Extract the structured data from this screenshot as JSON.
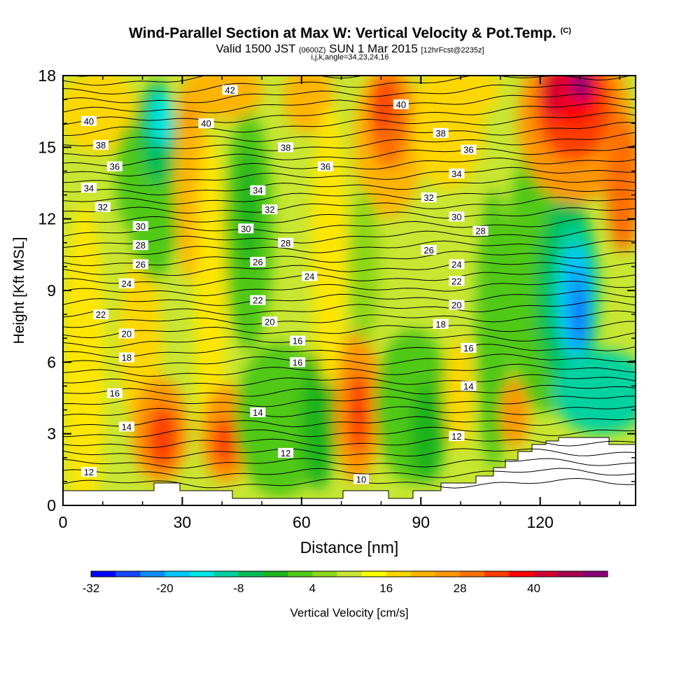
{
  "title": {
    "main": "Wind-Parallel Section at Max W: Vertical Velocity & Pot.Temp.",
    "copyright": "(C)",
    "valid_prefix": "Valid 1500 JST",
    "valid_utc": "(0600Z)",
    "valid_date": "SUN 1 Mar 2015",
    "forecast": "[12hrFcst@2235z]",
    "grid_info": "i,j,k,angle=34,23,24,16"
  },
  "chart_data": {
    "type": "heatmap",
    "xlabel": "Distance [nm]",
    "ylabel": "Height [Kft MSL]",
    "xlim": [
      0,
      144
    ],
    "ylim": [
      0,
      18
    ],
    "x_ticks": [
      "0",
      "30",
      "60",
      "90",
      "120"
    ],
    "y_ticks": [
      "0",
      "3",
      "6",
      "9",
      "12",
      "15",
      "18"
    ],
    "colorbar": {
      "label": "Vertical Velocity [cm/s]",
      "tick_labels": [
        "-32",
        "-20",
        "-8",
        "4",
        "16",
        "28",
        "40"
      ],
      "colors": [
        "#0000ff",
        "#1446ff",
        "#0a8cff",
        "#00c8ff",
        "#00e6e6",
        "#00d2a0",
        "#00be55",
        "#1eb41e",
        "#50c814",
        "#8cd719",
        "#c8e632",
        "#ffff00",
        "#ffd700",
        "#ffb400",
        "#ff9600",
        "#ff6e00",
        "#ff3c00",
        "#ff0000",
        "#d20032",
        "#aa0050",
        "#8c0078"
      ]
    },
    "isentrope_labels": [
      {
        "value": "42",
        "x": 42,
        "y": 17.4
      },
      {
        "value": "40",
        "x": 6.5,
        "y": 16.1
      },
      {
        "value": "40",
        "x": 36,
        "y": 16.0
      },
      {
        "value": "40",
        "x": 85,
        "y": 16.8
      },
      {
        "value": "38",
        "x": 9.5,
        "y": 15.1
      },
      {
        "value": "38",
        "x": 56,
        "y": 15.0
      },
      {
        "value": "38",
        "x": 95,
        "y": 15.6
      },
      {
        "value": "36",
        "x": 13,
        "y": 14.2
      },
      {
        "value": "36",
        "x": 66,
        "y": 14.2
      },
      {
        "value": "36",
        "x": 102,
        "y": 14.9
      },
      {
        "value": "34",
        "x": 6.5,
        "y": 13.3
      },
      {
        "value": "34",
        "x": 49,
        "y": 13.2
      },
      {
        "value": "34",
        "x": 99,
        "y": 13.9
      },
      {
        "value": "32",
        "x": 10,
        "y": 12.5
      },
      {
        "value": "32",
        "x": 52,
        "y": 12.4
      },
      {
        "value": "32",
        "x": 92,
        "y": 12.9
      },
      {
        "value": "30",
        "x": 19.5,
        "y": 11.7
      },
      {
        "value": "30",
        "x": 46,
        "y": 11.6
      },
      {
        "value": "30",
        "x": 99,
        "y": 12.1
      },
      {
        "value": "28",
        "x": 19.5,
        "y": 10.9
      },
      {
        "value": "28",
        "x": 56,
        "y": 11.0
      },
      {
        "value": "28",
        "x": 105,
        "y": 11.5
      },
      {
        "value": "26",
        "x": 19.5,
        "y": 10.1
      },
      {
        "value": "26",
        "x": 49,
        "y": 10.2
      },
      {
        "value": "26",
        "x": 92,
        "y": 10.7
      },
      {
        "value": "24",
        "x": 16,
        "y": 9.3
      },
      {
        "value": "24",
        "x": 62,
        "y": 9.6
      },
      {
        "value": "24",
        "x": 99,
        "y": 10.1
      },
      {
        "value": "22",
        "x": 9.5,
        "y": 8.0
      },
      {
        "value": "22",
        "x": 49,
        "y": 8.6
      },
      {
        "value": "22",
        "x": 99,
        "y": 9.4
      },
      {
        "value": "20",
        "x": 16,
        "y": 7.2
      },
      {
        "value": "20",
        "x": 52,
        "y": 7.7
      },
      {
        "value": "20",
        "x": 99,
        "y": 8.4
      },
      {
        "value": "18",
        "x": 16,
        "y": 6.2
      },
      {
        "value": "18",
        "x": 95,
        "y": 7.6
      },
      {
        "value": "16",
        "x": 59,
        "y": 6.9
      },
      {
        "value": "16",
        "x": 59,
        "y": 6.0
      },
      {
        "value": "16",
        "x": 13,
        "y": 4.7
      },
      {
        "value": "16",
        "x": 102,
        "y": 6.6
      },
      {
        "value": "14",
        "x": 16,
        "y": 3.3
      },
      {
        "value": "14",
        "x": 49,
        "y": 3.9
      },
      {
        "value": "14",
        "x": 102,
        "y": 5.0
      },
      {
        "value": "12",
        "x": 6.5,
        "y": 1.4
      },
      {
        "value": "12",
        "x": 56,
        "y": 2.2
      },
      {
        "value": "12",
        "x": 99,
        "y": 2.9
      },
      {
        "value": "10",
        "x": 75,
        "y": 1.1
      }
    ]
  }
}
